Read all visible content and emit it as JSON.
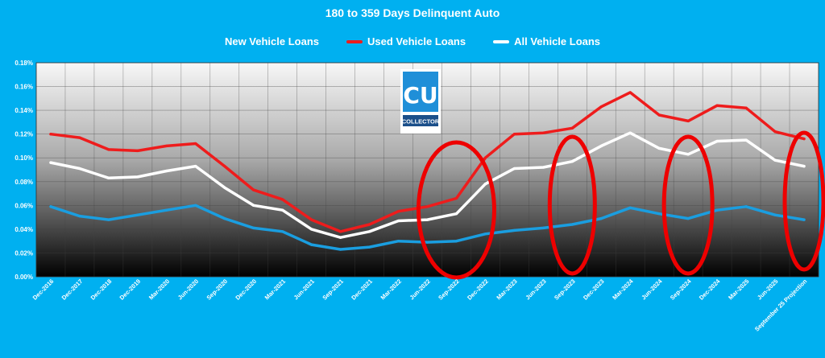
{
  "chart_data": {
    "type": "line",
    "title": "180 to 359 Days Delinquent Auto",
    "xlabel": "",
    "ylabel": "",
    "ylim": [
      0,
      0.18
    ],
    "yticks": [
      "0.00%",
      "0.02%",
      "0.04%",
      "0.06%",
      "0.08%",
      "0.10%",
      "0.12%",
      "0.14%",
      "0.16%",
      "0.18%"
    ],
    "grid": true,
    "legend_position": "top",
    "categories": [
      "Dec-2016",
      "Dec-2017",
      "Dec-2018",
      "Dec-2019",
      "Mar-2020",
      "Jun-2020",
      "Sep-2020",
      "Dec-2020",
      "Mar-2021",
      "Jun-2021",
      "Sep-2021",
      "Dec-2021",
      "Mar-2022",
      "Jun-2022",
      "Sep-2022",
      "Dec-2022",
      "Mar-2023",
      "Jun-2023",
      "Sep-2023",
      "Dec-2023",
      "Mar-2024",
      "Jun-2024",
      "Sep-2024",
      "Dec-2024",
      "Mar-2025",
      "Jun-2025",
      "September 25 Projection"
    ],
    "series": [
      {
        "name": "New Vehicle Loans",
        "color": "#1a9ee0",
        "values": [
          0.059,
          0.051,
          0.048,
          0.052,
          0.056,
          0.06,
          0.049,
          0.041,
          0.038,
          0.027,
          0.023,
          0.025,
          0.03,
          0.029,
          0.03,
          0.036,
          0.039,
          0.041,
          0.044,
          0.049,
          0.058,
          0.053,
          0.049,
          0.056,
          0.059,
          0.052,
          0.048
        ]
      },
      {
        "name": "Used Vehicle Loans",
        "color": "#ee1c1c",
        "values": [
          0.12,
          0.117,
          0.107,
          0.106,
          0.11,
          0.112,
          0.093,
          0.073,
          0.065,
          0.048,
          0.038,
          0.044,
          0.055,
          0.059,
          0.066,
          0.1,
          0.12,
          0.121,
          0.125,
          0.143,
          0.155,
          0.136,
          0.131,
          0.144,
          0.142,
          0.122,
          0.116
        ]
      },
      {
        "name": "All Vehicle Loans",
        "color": "#ffffff",
        "values": [
          0.096,
          0.091,
          0.083,
          0.084,
          0.089,
          0.093,
          0.075,
          0.06,
          0.056,
          0.04,
          0.033,
          0.038,
          0.047,
          0.048,
          0.053,
          0.078,
          0.091,
          0.092,
          0.097,
          0.11,
          0.121,
          0.108,
          0.103,
          0.114,
          0.115,
          0.098,
          0.093
        ]
      }
    ],
    "annotations": [
      {
        "shape": "ellipse",
        "color": "#ee0000",
        "around": "Sep-2022"
      },
      {
        "shape": "ellipse",
        "color": "#ee0000",
        "around": "Sep-2023"
      },
      {
        "shape": "ellipse",
        "color": "#ee0000",
        "around": "Sep-2024"
      },
      {
        "shape": "ellipse",
        "color": "#ee0000",
        "around": "September 25 Projection"
      }
    ],
    "logo": {
      "letters": "CU",
      "text": "COLLECTOR"
    }
  }
}
